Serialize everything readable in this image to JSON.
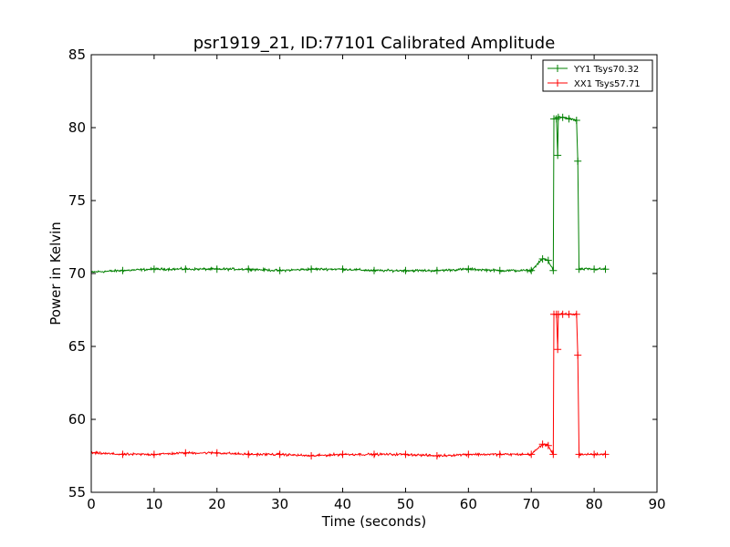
{
  "chart_data": {
    "type": "line",
    "title": "psr1919_21, ID:77101 Calibrated Amplitude",
    "xlabel": "Time (seconds)",
    "ylabel": "Power in Kelvin",
    "xlim": [
      0,
      90
    ],
    "ylim": [
      55,
      85
    ],
    "xticks": [
      "0",
      "10",
      "20",
      "30",
      "40",
      "50",
      "60",
      "70",
      "80",
      "90"
    ],
    "yticks": [
      "55",
      "60",
      "65",
      "70",
      "75",
      "80",
      "85"
    ],
    "grid": false,
    "legend_position": "top-right",
    "series": [
      {
        "name": "YY1 Tsys70.32",
        "color": "#008000",
        "marker": "+",
        "x": [
          0,
          5,
          10,
          15,
          20,
          25,
          30,
          35,
          40,
          45,
          50,
          55,
          60,
          65,
          70,
          71.8,
          72.7,
          73.5,
          73.6,
          74.0,
          74.2,
          74.3,
          75,
          76,
          77.2,
          77.4,
          77.6,
          80,
          81.8
        ],
        "y": [
          70.1,
          70.2,
          70.3,
          70.3,
          70.3,
          70.3,
          70.2,
          70.3,
          70.3,
          70.2,
          70.2,
          70.2,
          70.3,
          70.2,
          70.2,
          71.0,
          70.9,
          70.2,
          80.6,
          80.6,
          78.1,
          80.7,
          80.7,
          80.6,
          80.5,
          77.7,
          70.3,
          70.3,
          70.3
        ],
        "noise": 0.12
      },
      {
        "name": "XX1 Tsys57.71",
        "color": "#ff0000",
        "marker": "+",
        "x": [
          0,
          5,
          10,
          15,
          20,
          25,
          30,
          35,
          40,
          45,
          50,
          55,
          60,
          65,
          70,
          71.8,
          72.7,
          73.5,
          73.6,
          74.0,
          74.2,
          74.3,
          75,
          76,
          77.2,
          77.4,
          77.6,
          80,
          81.8
        ],
        "y": [
          57.7,
          57.6,
          57.6,
          57.7,
          57.7,
          57.6,
          57.6,
          57.5,
          57.6,
          57.6,
          57.6,
          57.5,
          57.6,
          57.6,
          57.6,
          58.3,
          58.2,
          57.6,
          67.2,
          67.2,
          64.8,
          67.2,
          67.2,
          67.2,
          67.2,
          64.4,
          57.6,
          57.6,
          57.6
        ],
        "noise": 0.12
      }
    ]
  }
}
